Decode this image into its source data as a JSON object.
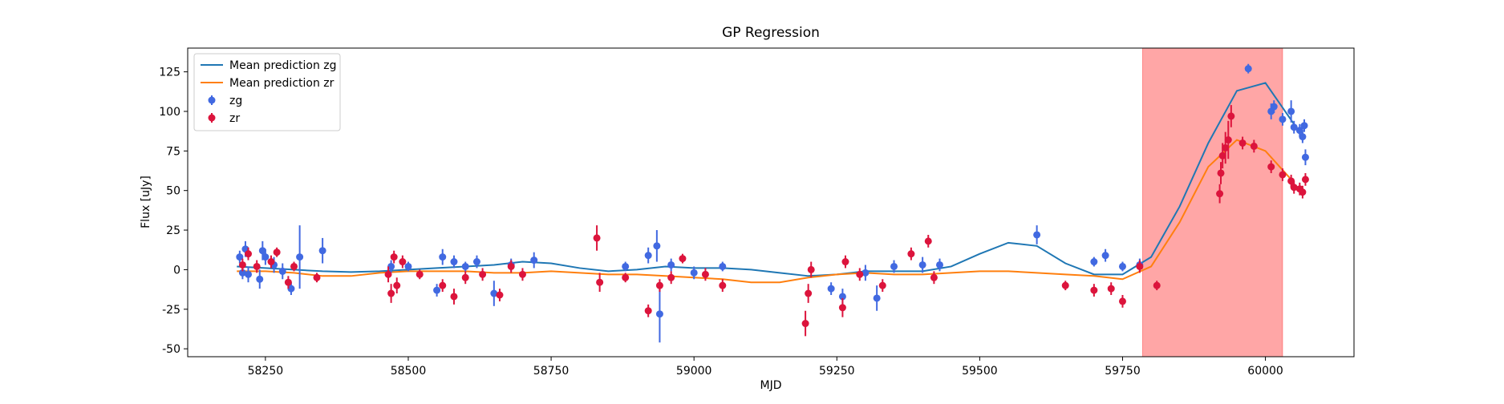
{
  "chart_data": {
    "type": "scatter",
    "title": "GP Regression",
    "xlabel": "MJD",
    "ylabel": "Flux [uJy]",
    "xlim": [
      58114,
      60155
    ],
    "ylim": [
      -55,
      140
    ],
    "xticks": [
      58250,
      58500,
      58750,
      59000,
      59250,
      59500,
      59750,
      60000
    ],
    "yticks": [
      -50,
      -25,
      0,
      25,
      50,
      75,
      100,
      125
    ],
    "legend": "upper left",
    "span": {
      "x": [
        59785,
        60030
      ],
      "color": "#ff0000"
    },
    "series": [
      {
        "name": "Mean prediction zg",
        "type": "line",
        "color": "#1f77b4",
        "x": [
          58200,
          58250,
          58300,
          58350,
          58400,
          58450,
          58500,
          58550,
          58600,
          58650,
          58700,
          58750,
          58800,
          58850,
          58900,
          58950,
          59000,
          59050,
          59100,
          59150,
          59200,
          59250,
          59300,
          59350,
          59400,
          59450,
          59500,
          59550,
          59600,
          59650,
          59700,
          59750,
          59800,
          59850,
          59900,
          59950,
          60000,
          60050
        ],
        "values": [
          2,
          1,
          0,
          -1,
          -1.5,
          -1,
          0,
          1,
          2,
          3,
          5,
          4,
          1,
          -1,
          0,
          2,
          1,
          1,
          0,
          -2,
          -4,
          -3,
          -1,
          -1,
          -1,
          2,
          10,
          17,
          15,
          4,
          -3,
          -3,
          8,
          40,
          80,
          113,
          118,
          92
        ]
      },
      {
        "name": "Mean prediction zr",
        "type": "line",
        "color": "#ff7f0e",
        "x": [
          58200,
          58250,
          58300,
          58350,
          58400,
          58450,
          58500,
          58550,
          58600,
          58650,
          58700,
          58750,
          58800,
          58850,
          58900,
          58950,
          59000,
          59050,
          59100,
          59150,
          59200,
          59250,
          59300,
          59350,
          59400,
          59450,
          59500,
          59550,
          59600,
          59650,
          59700,
          59750,
          59800,
          59850,
          59900,
          59950,
          60000,
          60050
        ],
        "values": [
          -1,
          -1,
          -2,
          -4,
          -4,
          -2,
          -1,
          -1,
          -1,
          -2,
          -2,
          -1,
          -2,
          -3,
          -3,
          -4,
          -5,
          -6,
          -8,
          -8,
          -5,
          -3,
          -2,
          -3,
          -3,
          -2,
          -1,
          -1,
          -2,
          -3,
          -4,
          -6,
          2,
          30,
          65,
          82,
          75,
          55
        ]
      },
      {
        "name": "zg",
        "type": "errorbar",
        "color": "#4169e1",
        "x": [
          58205,
          58210,
          58215,
          58220,
          58240,
          58245,
          58250,
          58265,
          58280,
          58295,
          58310,
          58350,
          58470,
          58500,
          58550,
          58560,
          58580,
          58600,
          58620,
          58650,
          58680,
          58720,
          58880,
          58920,
          58935,
          58940,
          58960,
          59000,
          59050,
          59240,
          59260,
          59300,
          59320,
          59350,
          59400,
          59430,
          59600,
          59700,
          59720,
          59750,
          59780,
          59970,
          60010,
          60015,
          60030,
          60045,
          60050,
          60060,
          60065,
          60070,
          60068
        ],
        "values": [
          8,
          -2,
          13,
          -3,
          -6,
          12,
          8,
          3,
          -1,
          -12,
          8,
          12,
          2,
          2,
          -13,
          8,
          5,
          2,
          5,
          -15,
          3,
          6,
          2,
          9,
          15,
          -28,
          3,
          -2,
          2,
          -12,
          -17,
          -2,
          -18,
          2,
          3,
          3,
          22,
          5,
          9,
          2,
          3,
          127,
          100,
          103,
          95,
          100,
          90,
          88,
          84,
          71,
          91
        ],
        "errors": [
          4,
          4,
          5,
          5,
          6,
          6,
          5,
          5,
          5,
          4,
          20,
          8,
          4,
          3,
          4,
          5,
          4,
          3,
          4,
          8,
          4,
          5,
          3,
          5,
          10,
          18,
          4,
          4,
          3,
          4,
          5,
          5,
          8,
          4,
          5,
          4,
          6,
          3,
          4,
          3,
          4,
          3,
          5,
          4,
          4,
          7,
          4,
          4,
          4,
          5,
          4
        ]
      },
      {
        "name": "zr",
        "type": "errorbar",
        "color": "#dc143c",
        "x": [
          58210,
          58220,
          58235,
          58260,
          58270,
          58290,
          58300,
          58340,
          58465,
          58470,
          58475,
          58480,
          58490,
          58520,
          58560,
          58580,
          58600,
          58630,
          58660,
          58680,
          58700,
          58830,
          58835,
          58880,
          58920,
          58940,
          58960,
          58980,
          59020,
          59050,
          59195,
          59200,
          59205,
          59260,
          59265,
          59290,
          59330,
          59380,
          59410,
          59420,
          59650,
          59700,
          59730,
          59750,
          59780,
          59810,
          59920,
          59922,
          59925,
          59930,
          59935,
          59940,
          59960,
          59980,
          60010,
          60030,
          60045,
          60050,
          60060,
          60065,
          60070
        ],
        "values": [
          3,
          10,
          2,
          5,
          11,
          -8,
          2,
          -5,
          -3,
          -15,
          8,
          -10,
          5,
          -3,
          -10,
          -17,
          -5,
          -3,
          -16,
          2,
          -3,
          20,
          -8,
          -5,
          -26,
          -10,
          -5,
          7,
          -3,
          -10,
          -34,
          -15,
          0,
          -24,
          5,
          -3,
          -10,
          10,
          18,
          -5,
          -10,
          -13,
          -12,
          -20,
          2,
          -10,
          48,
          61,
          72,
          77,
          82,
          97,
          80,
          78,
          65,
          60,
          56,
          52,
          51,
          49,
          57
        ],
        "errors": [
          4,
          4,
          4,
          4,
          3,
          4,
          3,
          3,
          5,
          6,
          4,
          5,
          4,
          3,
          4,
          5,
          4,
          4,
          4,
          4,
          4,
          8,
          6,
          3,
          4,
          4,
          4,
          3,
          4,
          4,
          8,
          6,
          5,
          6,
          4,
          4,
          4,
          4,
          4,
          4,
          3,
          4,
          4,
          4,
          4,
          3,
          6,
          7,
          8,
          10,
          12,
          7,
          4,
          4,
          4,
          4,
          4,
          4,
          4,
          4,
          4
        ]
      }
    ]
  }
}
